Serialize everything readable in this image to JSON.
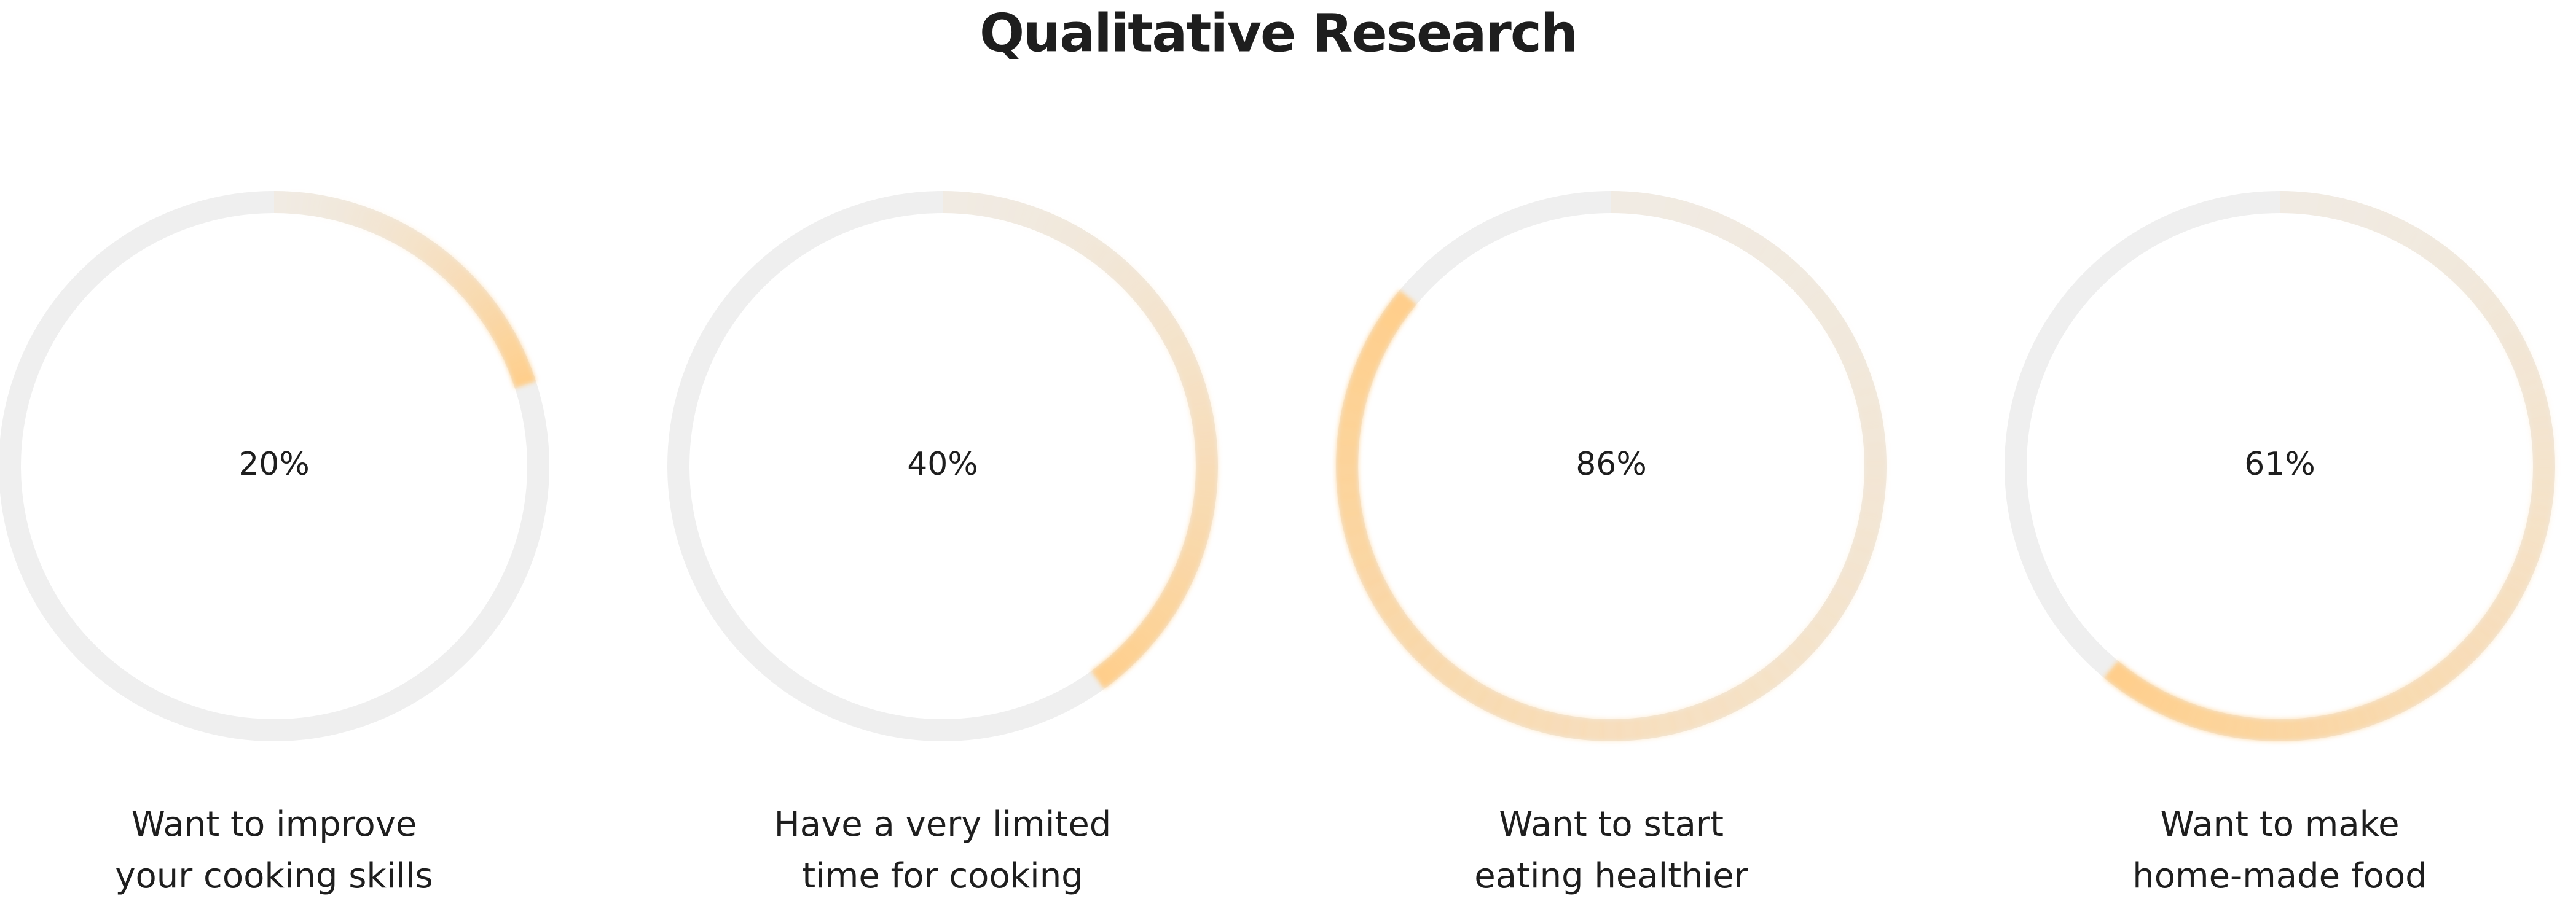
{
  "title": "Qualitative Research",
  "chart_data": [
    {
      "type": "donut",
      "values": [
        20
      ],
      "value_labels": [
        "20%"
      ],
      "ylim": [
        0,
        100
      ],
      "color": "#ffcf8c",
      "track_color": "#efefef",
      "label_lines": [
        "Want to improve",
        "your cooking skills"
      ]
    },
    {
      "type": "donut",
      "values": [
        40
      ],
      "value_labels": [
        "40%"
      ],
      "ylim": [
        0,
        100
      ],
      "color": "#ffcf8c",
      "track_color": "#efefef",
      "label_lines": [
        "Have a very limited",
        "time for cooking"
      ]
    },
    {
      "type": "donut",
      "values": [
        86
      ],
      "value_labels": [
        "86%"
      ],
      "ylim": [
        0,
        100
      ],
      "color": "#ffcf8c",
      "track_color": "#efefef",
      "label_lines": [
        "Want to start",
        "eating healthier"
      ]
    },
    {
      "type": "donut",
      "values": [
        61
      ],
      "value_labels": [
        "61%"
      ],
      "ylim": [
        0,
        100
      ],
      "color": "#ffcf8c",
      "track_color": "#efefef",
      "label_lines": [
        "Want to make",
        "home-made food"
      ]
    }
  ]
}
